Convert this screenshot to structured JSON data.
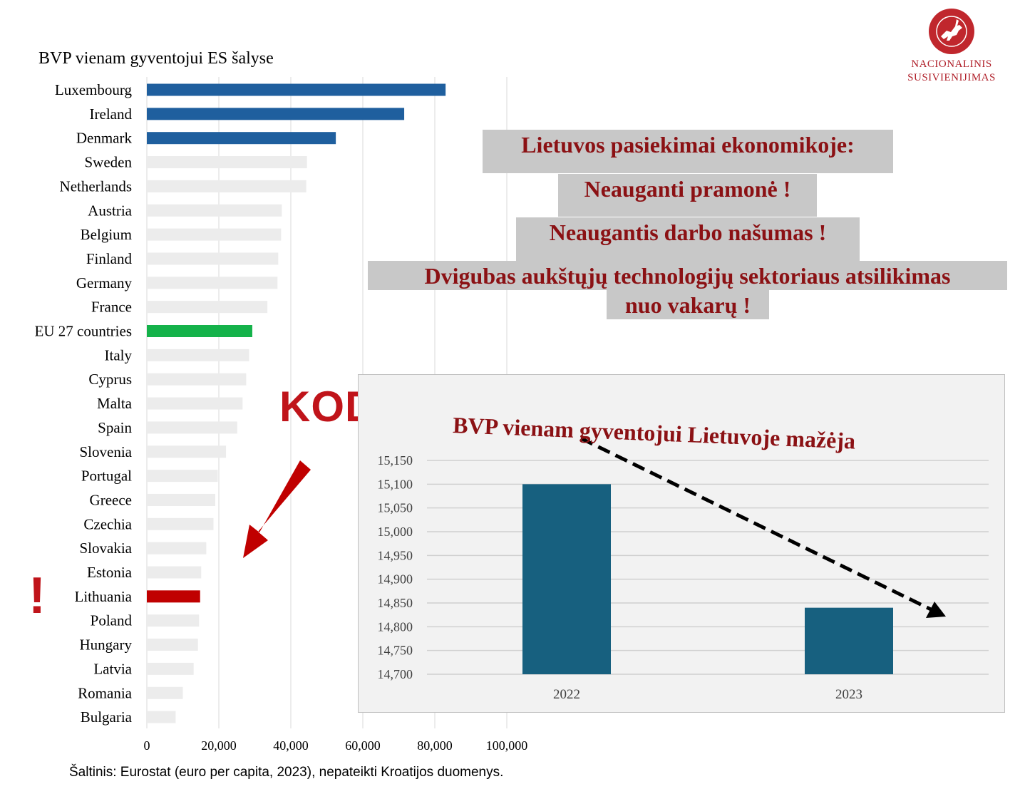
{
  "header": {
    "title": "BVP vienam gyventojui  ES šalyse",
    "logo_line1": "NACIONALINIS",
    "logo_line2": "SUSIVIENIJIMAS",
    "logo_icon": "vytis-emblem-icon"
  },
  "headline": {
    "line1": "Lietuvos pasiekimai ekonomikoje:",
    "line2": "Neauganti pramonė !",
    "line3": "Neaugantis darbo našumas !",
    "line4": "Dvigubas aukštųjų technologijų sektoriaus atsilikimas",
    "line5": "nuo vakarų !"
  },
  "callout": {
    "kodel": "KODĖL",
    "exclamation": "!"
  },
  "source": "Šaltinis: Eurostat (euro per capita, 2023), nepateikti Kroatijos duomenys.",
  "colors": {
    "top3": "#1f5f9e",
    "eu": "#14b24a",
    "lithuania": "#c00000",
    "others": "#ececec",
    "inset_bar": "#17607f",
    "headline_text": "#8b1114",
    "headline_bg": "#c8c8c8",
    "arrow": "#c00000"
  },
  "chart_data": [
    {
      "type": "bar",
      "orientation": "horizontal",
      "title": "BVP vienam gyventojui  ES šalyse",
      "categories": [
        "Luxembourg",
        "Ireland",
        "Denmark",
        "Sweden",
        "Netherlands",
        "Austria",
        "Belgium",
        "Finland",
        "Germany",
        "France",
        "EU 27 countries",
        "Italy",
        "Cyprus",
        "Malta",
        "Spain",
        "Slovenia",
        "Portugal",
        "Greece",
        "Czechia",
        "Slovakia",
        "Estonia",
        "Lithuania",
        "Poland",
        "Hungary",
        "Latvia",
        "Romania",
        "Bulgaria"
      ],
      "values": [
        83000,
        71500,
        52500,
        44500,
        44300,
        37500,
        37300,
        36500,
        36300,
        33500,
        29300,
        28400,
        27600,
        26600,
        25100,
        22000,
        19700,
        19000,
        18500,
        16500,
        15100,
        14800,
        14500,
        14200,
        13000,
        10000,
        8000
      ],
      "highlight": {
        "Luxembourg": "top3",
        "Ireland": "top3",
        "Denmark": "top3",
        "EU 27 countries": "eu",
        "Lithuania": "lithuania"
      },
      "xticks": [
        "0",
        "20,000",
        "40,000",
        "60,000",
        "80,000",
        "100,000"
      ],
      "xlim": [
        0,
        100000
      ],
      "grid": true
    },
    {
      "type": "bar",
      "title": "BVP vienam gyventojui Lietuvoje mažėja",
      "categories": [
        "2022",
        "2023"
      ],
      "values": [
        15100,
        14840
      ],
      "ylim": [
        14700,
        15150
      ],
      "yticks": [
        "15,150",
        "15,100",
        "15,050",
        "15,000",
        "14,950",
        "14,900",
        "14,850",
        "14,800",
        "14,750",
        "14,700"
      ],
      "grid": true,
      "trend_arrow": "downward"
    }
  ]
}
